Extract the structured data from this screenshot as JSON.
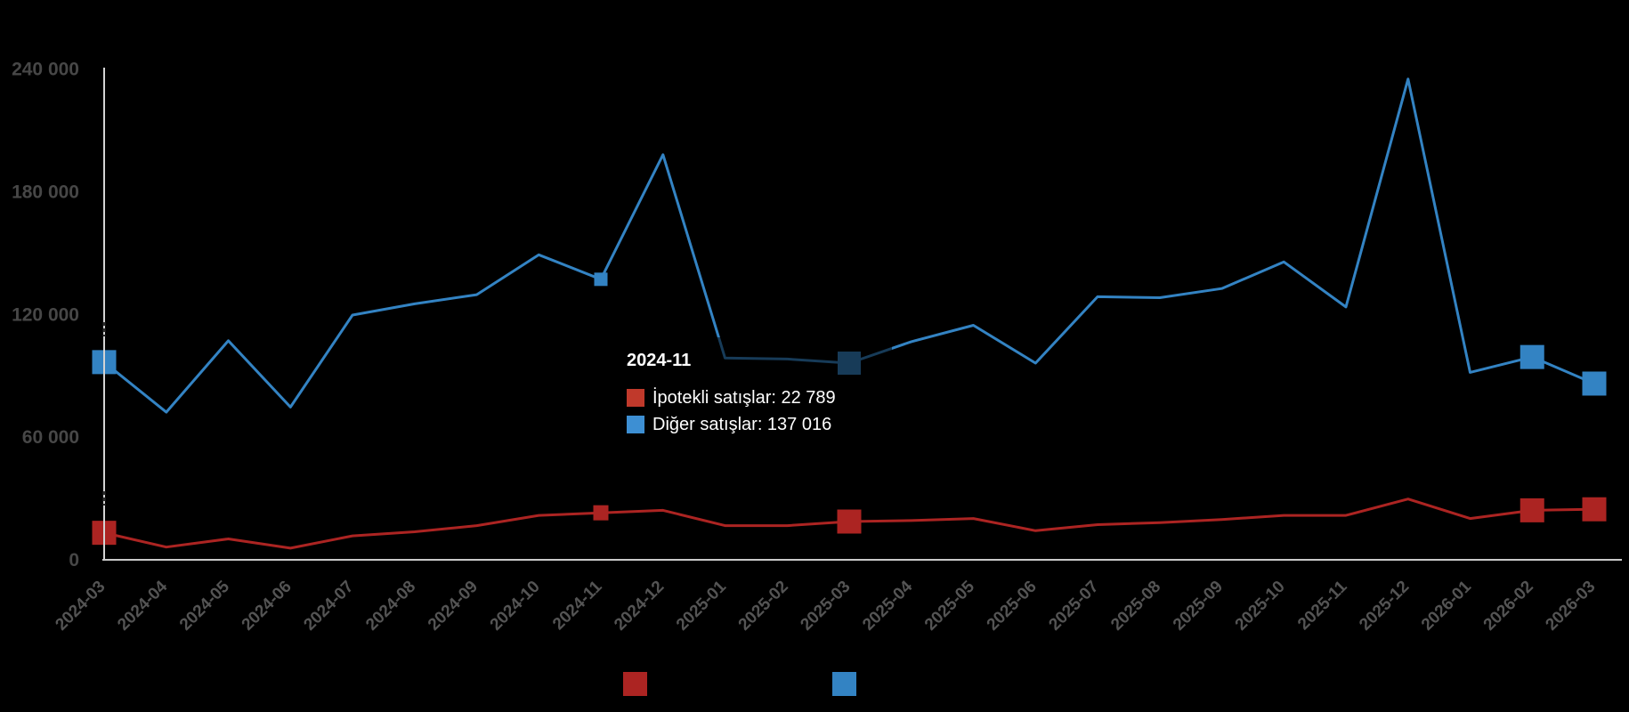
{
  "chart_data": {
    "type": "line",
    "title": "",
    "background": "#000000",
    "categories": [
      "2024-03",
      "2024-04",
      "2024-05",
      "2024-06",
      "2024-07",
      "2024-08",
      "2024-09",
      "2024-10",
      "2024-11",
      "2024-12",
      "2025-01",
      "2025-02",
      "2025-03",
      "2025-04",
      "2025-05",
      "2025-06",
      "2025-07",
      "2025-08",
      "2025-09",
      "2025-10",
      "2025-11",
      "2025-12",
      "2026-01",
      "2026-02",
      "2026-03"
    ],
    "series": [
      {
        "name": "İpotekli satışlar",
        "color": "#ac2422",
        "values": [
          13000,
          6000,
          10000,
          5500,
          11500,
          13500,
          16500,
          21500,
          22789,
          24000,
          16500,
          16500,
          18500,
          19000,
          20000,
          14000,
          17000,
          18000,
          19500,
          21500,
          21500,
          29500,
          20000,
          24000,
          24500
        ],
        "markers": [
          {
            "index": 0,
            "size": 27
          },
          {
            "index": 8,
            "size": 17
          },
          {
            "index": 12,
            "size": 27
          },
          {
            "index": 23,
            "size": 27
          },
          {
            "index": 24,
            "size": 27
          }
        ]
      },
      {
        "name": "Diğer satışlar",
        "color": "#3383c3",
        "values": [
          96500,
          72000,
          107000,
          74500,
          119500,
          125000,
          129500,
          149000,
          137016,
          198000,
          98500,
          98000,
          96000,
          106500,
          114500,
          96000,
          128500,
          128000,
          132500,
          145500,
          123500,
          235000,
          91500,
          99000,
          86000
        ],
        "markers": [
          {
            "index": 0,
            "size": 27
          },
          {
            "index": 8,
            "size": 15
          },
          {
            "index": 12,
            "size": 26
          },
          {
            "index": 23,
            "size": 27
          },
          {
            "index": 24,
            "size": 27
          }
        ]
      }
    ],
    "y_axis": {
      "min": 0,
      "max": 240000,
      "ticks": [
        {
          "value": 0,
          "label": "0"
        },
        {
          "value": 60000,
          "label": "60 000"
        },
        {
          "value": 120000,
          "label": "120 000"
        },
        {
          "value": 180000,
          "label": "180 000"
        },
        {
          "value": 240000,
          "label": "240 000"
        }
      ]
    },
    "x_axis": {
      "label_rotation": -45
    },
    "axis_color": "#d4d4d4",
    "grid": "off",
    "legend": {
      "position": "bottom",
      "items": [
        {
          "name": "İpotekli satışlar",
          "color": "#ac2422"
        },
        {
          "name": "Diğer satışlar",
          "color": "#3383c3"
        }
      ]
    }
  },
  "tooltip": {
    "title": "2024-11",
    "rows": [
      {
        "series": "İpotekli satışlar",
        "value": "22 789",
        "text": "İpotekli satışlar: 22 789",
        "color": "#c0392b"
      },
      {
        "series": "Diğer satışlar",
        "value": "137 016",
        "text": "Diğer satışlar: 137 016",
        "color": "#3d8fd3"
      }
    ]
  }
}
